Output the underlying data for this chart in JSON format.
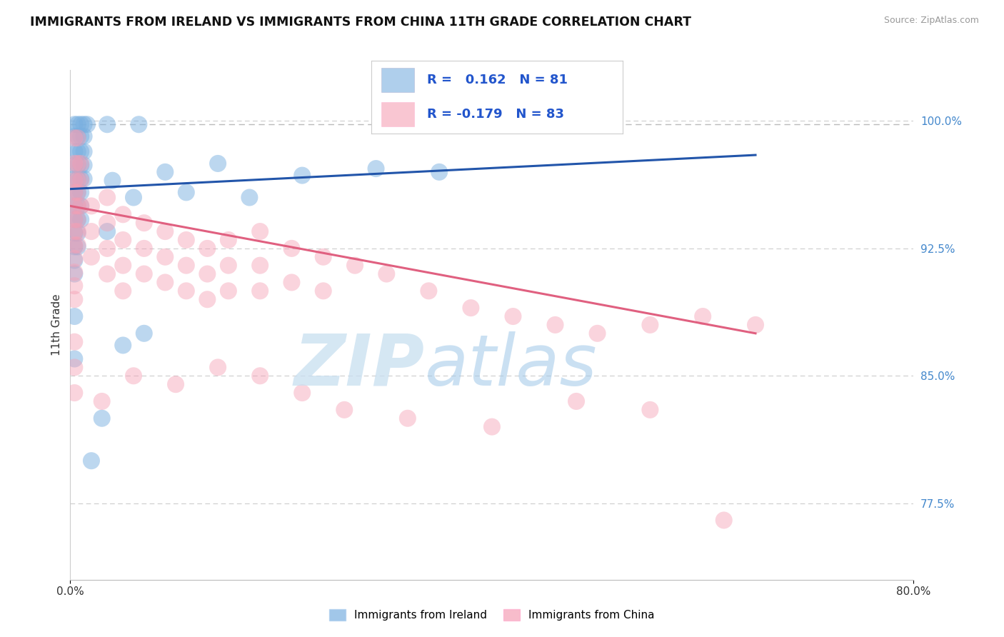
{
  "title": "IMMIGRANTS FROM IRELAND VS IMMIGRANTS FROM CHINA 11TH GRADE CORRELATION CHART",
  "source": "Source: ZipAtlas.com",
  "xlim": [
    0.0,
    80.0
  ],
  "ylim": [
    73.0,
    103.0
  ],
  "ytick_vals": [
    77.5,
    85.0,
    92.5,
    100.0
  ],
  "xtick_vals": [
    0.0,
    80.0
  ],
  "blue_R": 0.162,
  "blue_N": 81,
  "pink_R": -0.179,
  "pink_N": 83,
  "blue_color": "#7ab0e0",
  "pink_color": "#f5a0b5",
  "trend_blue": "#2255aa",
  "trend_pink": "#e06080",
  "legend_label_blue": "Immigrants from Ireland",
  "legend_label_pink": "Immigrants from China",
  "watermark_zip": "ZIP",
  "watermark_atlas": "atlas",
  "ylabel": "11th Grade",
  "blue_scatter": [
    [
      0.4,
      99.8
    ],
    [
      0.7,
      99.8
    ],
    [
      1.0,
      99.8
    ],
    [
      1.3,
      99.8
    ],
    [
      1.6,
      99.8
    ],
    [
      0.4,
      99.1
    ],
    [
      0.7,
      99.1
    ],
    [
      1.0,
      99.1
    ],
    [
      1.3,
      99.1
    ],
    [
      0.4,
      98.2
    ],
    [
      0.7,
      98.2
    ],
    [
      1.0,
      98.2
    ],
    [
      1.3,
      98.2
    ],
    [
      0.4,
      97.4
    ],
    [
      0.7,
      97.4
    ],
    [
      1.0,
      97.4
    ],
    [
      1.3,
      97.4
    ],
    [
      0.4,
      96.6
    ],
    [
      0.7,
      96.6
    ],
    [
      1.0,
      96.6
    ],
    [
      1.3,
      96.6
    ],
    [
      0.4,
      95.8
    ],
    [
      0.7,
      95.8
    ],
    [
      1.0,
      95.8
    ],
    [
      0.4,
      95.0
    ],
    [
      0.7,
      95.0
    ],
    [
      1.0,
      95.0
    ],
    [
      0.4,
      94.2
    ],
    [
      0.7,
      94.2
    ],
    [
      1.0,
      94.2
    ],
    [
      0.4,
      93.4
    ],
    [
      0.7,
      93.4
    ],
    [
      0.4,
      92.6
    ],
    [
      0.7,
      92.6
    ],
    [
      0.4,
      91.8
    ],
    [
      0.4,
      91.0
    ],
    [
      3.5,
      99.8
    ],
    [
      6.5,
      99.8
    ],
    [
      4.0,
      96.5
    ],
    [
      3.5,
      93.5
    ],
    [
      6.0,
      95.5
    ],
    [
      9.0,
      97.0
    ],
    [
      11.0,
      95.8
    ],
    [
      14.0,
      97.5
    ],
    [
      17.0,
      95.5
    ],
    [
      22.0,
      96.8
    ],
    [
      29.0,
      97.2
    ],
    [
      35.0,
      97.0
    ],
    [
      0.4,
      88.5
    ],
    [
      0.4,
      86.0
    ],
    [
      7.0,
      87.5
    ],
    [
      5.0,
      86.8
    ],
    [
      3.0,
      82.5
    ],
    [
      2.0,
      80.0
    ]
  ],
  "pink_scatter": [
    [
      0.4,
      99.0
    ],
    [
      0.7,
      99.0
    ],
    [
      0.4,
      97.5
    ],
    [
      0.7,
      97.5
    ],
    [
      1.0,
      97.5
    ],
    [
      0.4,
      96.5
    ],
    [
      0.7,
      96.5
    ],
    [
      1.0,
      96.5
    ],
    [
      0.4,
      95.8
    ],
    [
      0.7,
      95.8
    ],
    [
      0.4,
      95.0
    ],
    [
      0.7,
      95.0
    ],
    [
      1.0,
      95.0
    ],
    [
      0.4,
      94.2
    ],
    [
      0.7,
      94.2
    ],
    [
      0.4,
      93.5
    ],
    [
      0.7,
      93.5
    ],
    [
      0.4,
      92.7
    ],
    [
      0.7,
      92.7
    ],
    [
      0.4,
      91.9
    ],
    [
      0.4,
      91.1
    ],
    [
      0.4,
      90.3
    ],
    [
      0.4,
      89.5
    ],
    [
      2.0,
      95.0
    ],
    [
      2.0,
      93.5
    ],
    [
      2.0,
      92.0
    ],
    [
      3.5,
      95.5
    ],
    [
      3.5,
      94.0
    ],
    [
      3.5,
      92.5
    ],
    [
      3.5,
      91.0
    ],
    [
      5.0,
      94.5
    ],
    [
      5.0,
      93.0
    ],
    [
      5.0,
      91.5
    ],
    [
      5.0,
      90.0
    ],
    [
      7.0,
      94.0
    ],
    [
      7.0,
      92.5
    ],
    [
      7.0,
      91.0
    ],
    [
      9.0,
      93.5
    ],
    [
      9.0,
      92.0
    ],
    [
      9.0,
      90.5
    ],
    [
      11.0,
      93.0
    ],
    [
      11.0,
      91.5
    ],
    [
      11.0,
      90.0
    ],
    [
      13.0,
      92.5
    ],
    [
      13.0,
      91.0
    ],
    [
      13.0,
      89.5
    ],
    [
      15.0,
      93.0
    ],
    [
      15.0,
      91.5
    ],
    [
      15.0,
      90.0
    ],
    [
      18.0,
      93.5
    ],
    [
      18.0,
      91.5
    ],
    [
      18.0,
      90.0
    ],
    [
      21.0,
      92.5
    ],
    [
      21.0,
      90.5
    ],
    [
      24.0,
      92.0
    ],
    [
      24.0,
      90.0
    ],
    [
      27.0,
      91.5
    ],
    [
      30.0,
      91.0
    ],
    [
      34.0,
      90.0
    ],
    [
      38.0,
      89.0
    ],
    [
      42.0,
      88.5
    ],
    [
      46.0,
      88.0
    ],
    [
      50.0,
      87.5
    ],
    [
      55.0,
      88.0
    ],
    [
      60.0,
      88.5
    ],
    [
      65.0,
      88.0
    ],
    [
      0.4,
      87.0
    ],
    [
      0.4,
      85.5
    ],
    [
      0.4,
      84.0
    ],
    [
      3.0,
      83.5
    ],
    [
      6.0,
      85.0
    ],
    [
      10.0,
      84.5
    ],
    [
      14.0,
      85.5
    ],
    [
      18.0,
      85.0
    ],
    [
      22.0,
      84.0
    ],
    [
      26.0,
      83.0
    ],
    [
      32.0,
      82.5
    ],
    [
      40.0,
      82.0
    ],
    [
      48.0,
      83.5
    ],
    [
      55.0,
      83.0
    ],
    [
      62.0,
      76.5
    ]
  ],
  "blue_trend_x": [
    0.0,
    65.0
  ],
  "blue_trend_y": [
    96.0,
    98.0
  ],
  "pink_trend_x": [
    0.0,
    65.0
  ],
  "pink_trend_y": [
    95.0,
    87.5
  ],
  "dashed_line_y": 99.8
}
